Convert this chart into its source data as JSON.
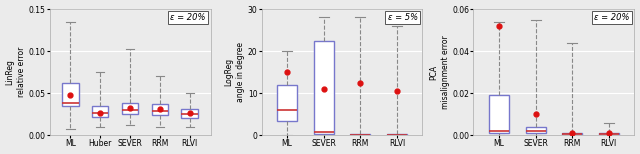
{
  "plot1": {
    "epsilon": "ε = 20%",
    "ylabel": "LinReg\nrelative error",
    "ylim": [
      0,
      0.15
    ],
    "yticks": [
      0.0,
      0.05,
      0.1,
      0.15
    ],
    "categories": [
      "ML",
      "Huber",
      "SEVER",
      "RRM",
      "RLVI"
    ],
    "boxes": [
      {
        "q1": 0.035,
        "median": 0.038,
        "q3": 0.062,
        "whislo": 0.008,
        "whishi": 0.135,
        "mean": 0.048
      },
      {
        "q1": 0.022,
        "median": 0.026,
        "q3": 0.035,
        "whislo": 0.01,
        "whishi": 0.075,
        "mean": 0.027
      },
      {
        "q1": 0.025,
        "median": 0.03,
        "q3": 0.038,
        "whislo": 0.012,
        "whishi": 0.102,
        "mean": 0.033
      },
      {
        "q1": 0.024,
        "median": 0.029,
        "q3": 0.037,
        "whislo": 0.01,
        "whishi": 0.07,
        "mean": 0.031
      },
      {
        "q1": 0.02,
        "median": 0.025,
        "q3": 0.031,
        "whislo": 0.01,
        "whishi": 0.05,
        "mean": 0.026
      }
    ]
  },
  "plot2": {
    "epsilon": "ε = 5%",
    "ylabel": "LogReg\nangle in degree",
    "ylim": [
      0,
      30
    ],
    "yticks": [
      0,
      10,
      20,
      30
    ],
    "categories": [
      "ML",
      "SEVER",
      "RRM",
      "RLVI"
    ],
    "boxes": [
      {
        "q1": 3.5,
        "median": 6.0,
        "q3": 12.0,
        "whislo": 0.0,
        "whishi": 20.0,
        "mean": 15.0
      },
      {
        "q1": 0.2,
        "median": 0.8,
        "q3": 22.5,
        "whislo": 0.0,
        "whishi": 28.0,
        "mean": 11.0
      },
      {
        "q1": 0.05,
        "median": 0.15,
        "q3": 0.4,
        "whislo": 0.0,
        "whishi": 28.0,
        "mean": 12.5
      },
      {
        "q1": 0.05,
        "median": 0.15,
        "q3": 0.4,
        "whislo": 0.0,
        "whishi": 26.0,
        "mean": 10.5
      }
    ]
  },
  "plot3": {
    "epsilon": "ε = 20%",
    "ylabel": "PCA\nmisalignment error",
    "ylim": [
      0,
      0.06
    ],
    "yticks": [
      0.0,
      0.02,
      0.04,
      0.06
    ],
    "categories": [
      "ML",
      "SEVER",
      "RRM",
      "RLVI"
    ],
    "boxes": [
      {
        "q1": 0.001,
        "median": 0.002,
        "q3": 0.019,
        "whislo": 0.0,
        "whishi": 0.054,
        "mean": 0.052
      },
      {
        "q1": 0.001,
        "median": 0.002,
        "q3": 0.004,
        "whislo": 0.0,
        "whishi": 0.055,
        "mean": 0.01
      },
      {
        "q1": 0.0,
        "median": 0.0005,
        "q3": 0.001,
        "whislo": 0.0,
        "whishi": 0.044,
        "mean": 0.001
      },
      {
        "q1": 0.0,
        "median": 0.0005,
        "q3": 0.001,
        "whislo": 0.0,
        "whishi": 0.006,
        "mean": 0.001
      }
    ]
  },
  "box_color": "#7777cc",
  "median_color": "#cc3333",
  "mean_color": "#dd1111",
  "whisker_color": "#888888",
  "cap_color": "#888888",
  "bg_color": "#ebebeb",
  "grid_color": "#ffffff"
}
